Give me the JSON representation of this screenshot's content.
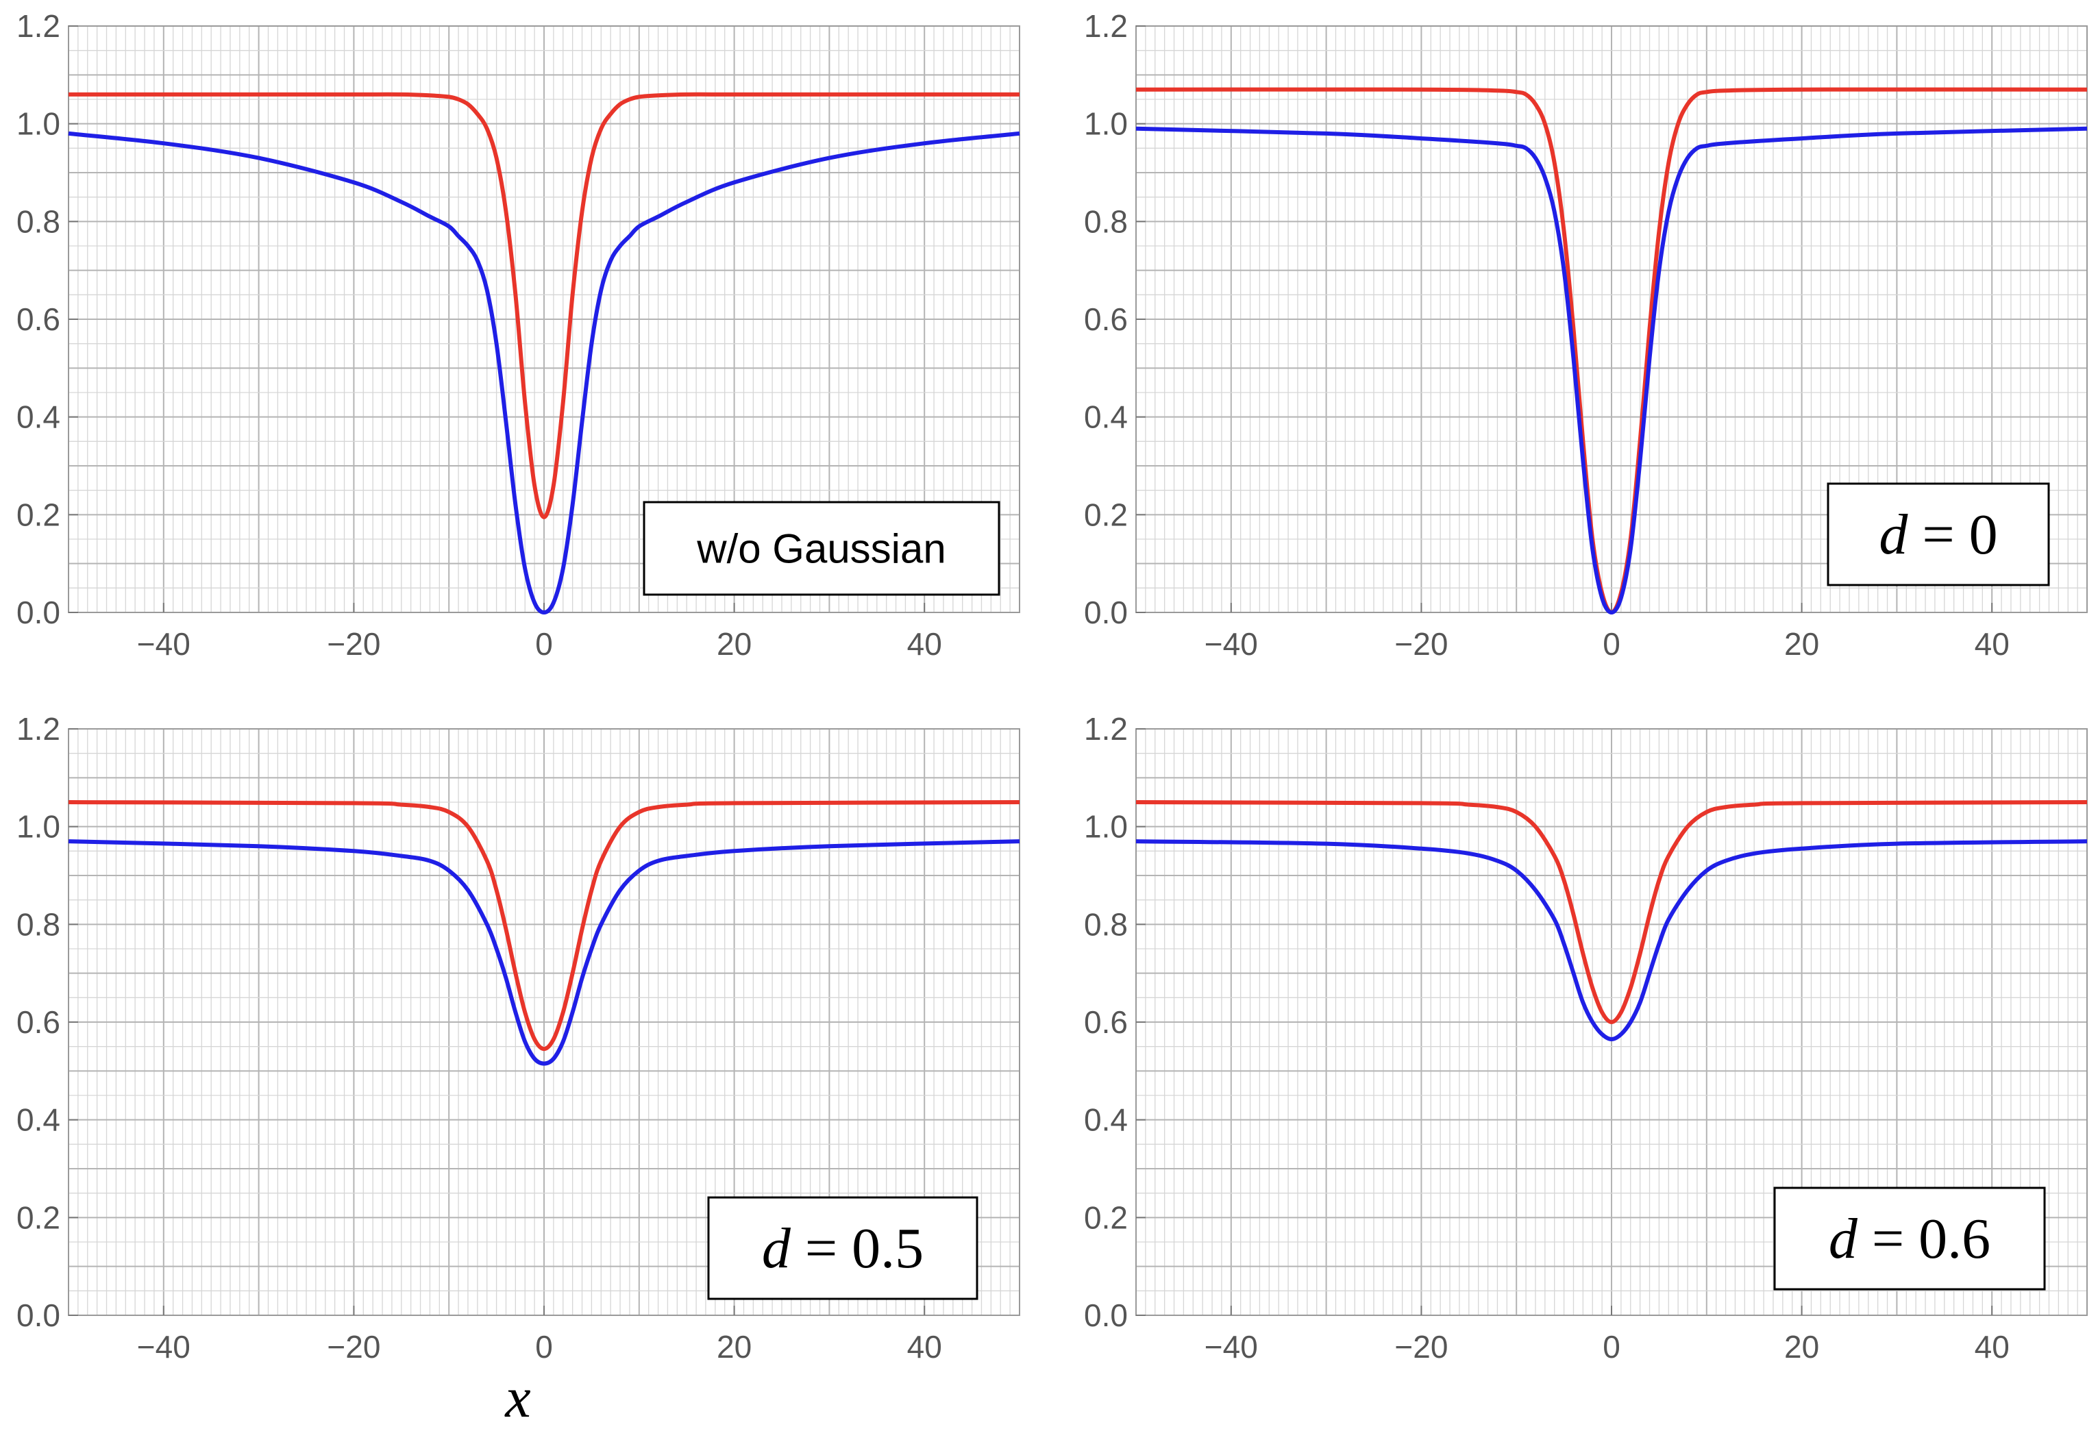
{
  "chart_data": [
    {
      "type": "line",
      "legend_label": "w/o Gaussian",
      "legend_style": "plain",
      "legend_placement": "bottom-right",
      "xlim": [
        -50,
        50
      ],
      "ylim": [
        0,
        1.2
      ],
      "xticks": [
        "−40",
        "−20",
        "0",
        "20",
        "40"
      ],
      "yticks": [
        "0.0",
        "0.2",
        "0.4",
        "0.6",
        "0.8",
        "1.0",
        "1.2"
      ],
      "grid": true,
      "xlabel": "",
      "series": [
        {
          "color": "#e8352a",
          "x": [
            -50,
            -30,
            -20,
            -15,
            -12,
            -10,
            -9,
            -8,
            -7,
            -6,
            -5,
            -4,
            -3,
            -2,
            -1,
            0,
            1,
            2,
            3,
            4,
            5,
            6,
            7,
            8,
            9,
            10,
            12,
            15,
            20,
            30,
            50
          ],
          "y": [
            1.06,
            1.06,
            1.06,
            1.06,
            1.058,
            1.055,
            1.05,
            1.04,
            1.02,
            0.99,
            0.93,
            0.82,
            0.65,
            0.43,
            0.26,
            0.195,
            0.26,
            0.43,
            0.65,
            0.82,
            0.93,
            0.99,
            1.02,
            1.04,
            1.05,
            1.055,
            1.058,
            1.06,
            1.06,
            1.06,
            1.06
          ]
        },
        {
          "color": "#1f1fe6",
          "x": [
            -50,
            -40,
            -30,
            -20,
            -15,
            -12,
            -10,
            -9,
            -8,
            -7,
            -6,
            -5,
            -4,
            -3,
            -2,
            -1,
            0,
            1,
            2,
            3,
            4,
            5,
            6,
            7,
            8,
            9,
            10,
            12,
            15,
            20,
            30,
            40,
            50
          ],
          "y": [
            0.98,
            0.96,
            0.93,
            0.88,
            0.84,
            0.81,
            0.79,
            0.77,
            0.75,
            0.72,
            0.66,
            0.55,
            0.39,
            0.22,
            0.09,
            0.02,
            0.0,
            0.02,
            0.09,
            0.22,
            0.39,
            0.55,
            0.66,
            0.72,
            0.75,
            0.77,
            0.79,
            0.81,
            0.84,
            0.88,
            0.93,
            0.96,
            0.98
          ]
        }
      ]
    },
    {
      "type": "line",
      "legend_label": "d = 0",
      "legend_style": "math",
      "legend_placement": "bottom-right",
      "xlim": [
        -50,
        50
      ],
      "ylim": [
        0,
        1.2
      ],
      "xticks": [
        "−40",
        "−20",
        "0",
        "20",
        "40"
      ],
      "yticks": [
        "0.0",
        "0.2",
        "0.4",
        "0.6",
        "0.8",
        "1.0",
        "1.2"
      ],
      "grid": true,
      "xlabel": "",
      "series": [
        {
          "color": "#e8352a",
          "x": [
            -50,
            -20,
            -12,
            -10,
            -9,
            -8,
            -7,
            -6,
            -5,
            -4,
            -3,
            -2,
            -1,
            0,
            1,
            2,
            3,
            4,
            5,
            6,
            7,
            8,
            9,
            10,
            12,
            20,
            50
          ],
          "y": [
            1.07,
            1.07,
            1.068,
            1.065,
            1.06,
            1.04,
            1.0,
            0.92,
            0.78,
            0.58,
            0.35,
            0.15,
            0.04,
            0.0,
            0.04,
            0.15,
            0.35,
            0.58,
            0.78,
            0.92,
            1.0,
            1.04,
            1.06,
            1.065,
            1.068,
            1.07,
            1.07
          ]
        },
        {
          "color": "#1f1fe6",
          "x": [
            -50,
            -30,
            -20,
            -12,
            -10,
            -9,
            -8,
            -7,
            -6,
            -5,
            -4,
            -3,
            -2,
            -1,
            0,
            1,
            2,
            3,
            4,
            5,
            6,
            7,
            8,
            9,
            10,
            12,
            20,
            30,
            50
          ],
          "y": [
            0.99,
            0.98,
            0.97,
            0.96,
            0.955,
            0.95,
            0.93,
            0.89,
            0.82,
            0.7,
            0.52,
            0.31,
            0.13,
            0.03,
            0.0,
            0.03,
            0.13,
            0.31,
            0.52,
            0.7,
            0.82,
            0.89,
            0.93,
            0.95,
            0.955,
            0.96,
            0.97,
            0.98,
            0.99
          ]
        }
      ]
    },
    {
      "type": "line",
      "legend_label": "d = 0.5",
      "legend_style": "math",
      "legend_placement": "bottom-right",
      "xlim": [
        -50,
        50
      ],
      "ylim": [
        0,
        1.2
      ],
      "xticks": [
        "−40",
        "−20",
        "0",
        "20",
        "40"
      ],
      "yticks": [
        "0.0",
        "0.2",
        "0.4",
        "0.6",
        "0.8",
        "1.0",
        "1.2"
      ],
      "grid": true,
      "xlabel": "x",
      "series": [
        {
          "color": "#e8352a",
          "x": [
            -50,
            -20,
            -15,
            -12,
            -10,
            -8,
            -6,
            -5,
            -4,
            -3,
            -2,
            -1,
            0,
            1,
            2,
            3,
            4,
            5,
            6,
            8,
            10,
            12,
            15,
            20,
            50
          ],
          "y": [
            1.05,
            1.048,
            1.045,
            1.04,
            1.03,
            1.0,
            0.93,
            0.87,
            0.79,
            0.7,
            0.62,
            0.565,
            0.545,
            0.565,
            0.62,
            0.7,
            0.79,
            0.87,
            0.93,
            1.0,
            1.03,
            1.04,
            1.045,
            1.048,
            1.05
          ]
        },
        {
          "color": "#1f1fe6",
          "x": [
            -50,
            -30,
            -20,
            -15,
            -12,
            -10,
            -8,
            -6,
            -5,
            -4,
            -3,
            -2,
            -1,
            0,
            1,
            2,
            3,
            4,
            5,
            6,
            8,
            10,
            12,
            15,
            20,
            30,
            50
          ],
          "y": [
            0.97,
            0.96,
            0.95,
            0.94,
            0.93,
            0.91,
            0.87,
            0.8,
            0.75,
            0.69,
            0.62,
            0.56,
            0.525,
            0.515,
            0.525,
            0.56,
            0.62,
            0.69,
            0.75,
            0.8,
            0.87,
            0.91,
            0.93,
            0.94,
            0.95,
            0.96,
            0.97
          ]
        }
      ]
    },
    {
      "type": "line",
      "legend_label": "d = 0.6",
      "legend_style": "math",
      "legend_placement": "bottom-right",
      "xlim": [
        -50,
        50
      ],
      "ylim": [
        0,
        1.2
      ],
      "xticks": [
        "−40",
        "−20",
        "0",
        "20",
        "40"
      ],
      "yticks": [
        "0.0",
        "0.2",
        "0.4",
        "0.6",
        "0.8",
        "1.0",
        "1.2"
      ],
      "grid": true,
      "xlabel": "",
      "series": [
        {
          "color": "#e8352a",
          "x": [
            -50,
            -20,
            -15,
            -12,
            -10,
            -8,
            -6,
            -5,
            -4,
            -3,
            -2,
            -1,
            0,
            1,
            2,
            3,
            4,
            5,
            6,
            8,
            10,
            12,
            15,
            20,
            50
          ],
          "y": [
            1.05,
            1.048,
            1.045,
            1.04,
            1.03,
            1.0,
            0.94,
            0.89,
            0.82,
            0.74,
            0.67,
            0.62,
            0.6,
            0.62,
            0.67,
            0.74,
            0.82,
            0.89,
            0.94,
            1.0,
            1.03,
            1.04,
            1.045,
            1.048,
            1.05
          ]
        },
        {
          "color": "#1f1fe6",
          "x": [
            -50,
            -30,
            -20,
            -15,
            -12,
            -10,
            -8,
            -6,
            -5,
            -4,
            -3,
            -2,
            -1,
            0,
            1,
            2,
            3,
            4,
            5,
            6,
            8,
            10,
            12,
            15,
            20,
            30,
            50
          ],
          "y": [
            0.97,
            0.965,
            0.955,
            0.945,
            0.93,
            0.91,
            0.87,
            0.81,
            0.76,
            0.7,
            0.64,
            0.6,
            0.575,
            0.565,
            0.575,
            0.6,
            0.64,
            0.7,
            0.76,
            0.81,
            0.87,
            0.91,
            0.93,
            0.945,
            0.955,
            0.965,
            0.97
          ]
        }
      ]
    }
  ]
}
